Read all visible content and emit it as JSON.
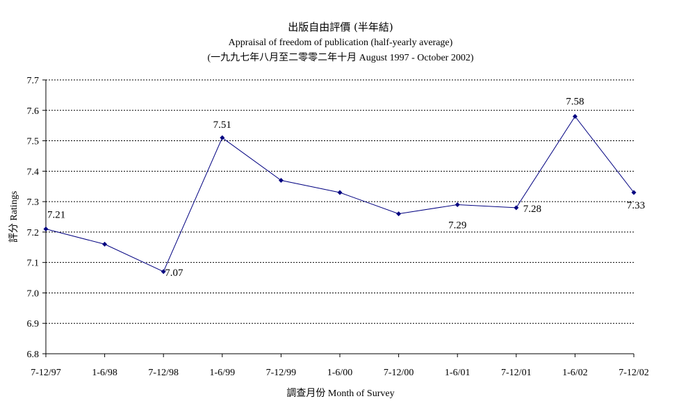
{
  "chart_data": {
    "type": "line",
    "title": "出版自由評價 (半年結)",
    "subtitle": "Appraisal of freedom of publication (half-yearly average)",
    "subtitle2": "(一九九七年八月至二零零二年十月 August 1997 - October 2002)",
    "xlabel": "調查月份 Month of Survey",
    "ylabel": "評分 Ratings",
    "categories": [
      "7-12/97",
      "1-6/98",
      "7-12/98",
      "1-6/99",
      "7-12/99",
      "1-6/00",
      "7-12/00",
      "1-6/01",
      "7-12/01",
      "1-6/02",
      "7-12/02"
    ],
    "series": [
      {
        "values": [
          7.21,
          7.16,
          7.07,
          7.51,
          7.37,
          7.33,
          7.26,
          7.29,
          7.28,
          7.58,
          7.33
        ],
        "color": "#000080"
      }
    ],
    "data_labels": [
      {
        "index": 0,
        "text": "7.21"
      },
      {
        "index": 2,
        "text": "7.07"
      },
      {
        "index": 3,
        "text": "7.51"
      },
      {
        "index": 7,
        "text": "7.29"
      },
      {
        "index": 8,
        "text": "7.28"
      },
      {
        "index": 9,
        "text": "7.58"
      },
      {
        "index": 10,
        "text": "7.33"
      }
    ],
    "ylim": [
      6.8,
      7.7
    ],
    "yticks": [
      "6.8",
      "6.9",
      "7.0",
      "7.1",
      "7.2",
      "7.3",
      "7.4",
      "7.5",
      "7.6",
      "7.7"
    ],
    "grid": true,
    "legend": "none"
  }
}
